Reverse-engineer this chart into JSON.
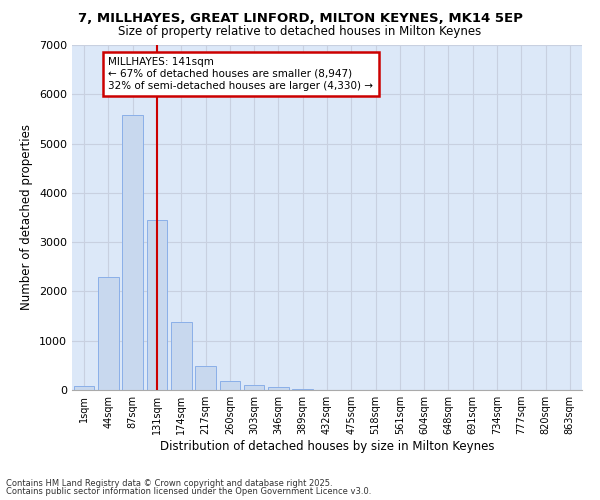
{
  "title1": "7, MILLHAYES, GREAT LINFORD, MILTON KEYNES, MK14 5EP",
  "title2": "Size of property relative to detached houses in Milton Keynes",
  "xlabel": "Distribution of detached houses by size in Milton Keynes",
  "ylabel": "Number of detached properties",
  "categories": [
    "1sqm",
    "44sqm",
    "87sqm",
    "131sqm",
    "174sqm",
    "217sqm",
    "260sqm",
    "303sqm",
    "346sqm",
    "389sqm",
    "432sqm",
    "475sqm",
    "518sqm",
    "561sqm",
    "604sqm",
    "648sqm",
    "691sqm",
    "734sqm",
    "777sqm",
    "820sqm",
    "863sqm"
  ],
  "bar_values": [
    80,
    2300,
    5580,
    3450,
    1370,
    480,
    190,
    100,
    60,
    30,
    0,
    0,
    0,
    0,
    0,
    0,
    0,
    0,
    0,
    0,
    0
  ],
  "bar_color": "#c8d8ee",
  "bar_edge_color": "#8aafe8",
  "vline_x_index": 3,
  "vline_color": "#cc0000",
  "annotation_title": "MILLHAYES: 141sqm",
  "annotation_line1": "← 67% of detached houses are smaller (8,947)",
  "annotation_line2": "32% of semi-detached houses are larger (4,330) →",
  "annotation_box_color": "#cc0000",
  "ylim": [
    0,
    7000
  ],
  "yticks": [
    0,
    1000,
    2000,
    3000,
    4000,
    5000,
    6000,
    7000
  ],
  "grid_color": "#c8d0e0",
  "background_color": "#dce8f8",
  "footnote1": "Contains HM Land Registry data © Crown copyright and database right 2025.",
  "footnote2": "Contains public sector information licensed under the Open Government Licence v3.0."
}
